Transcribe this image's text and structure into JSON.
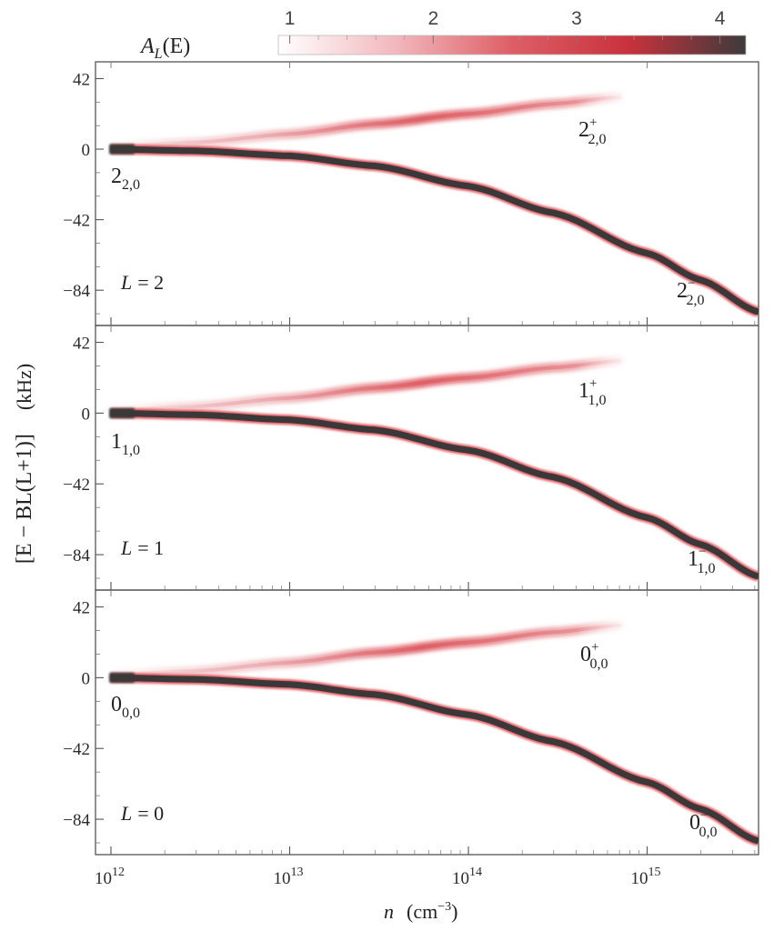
{
  "chart_data": {
    "type": "line",
    "x_scale": "log",
    "xlim": [
      1000000000000.0,
      4200000000000000.0
    ],
    "ylim": [
      -105,
      52
    ],
    "xlabel": {
      "var": "n",
      "unit": "(cm",
      "unit_exp": "−3",
      "unit_close": ")"
    },
    "ylabel": {
      "text": "[E − BL(L+1)]",
      "unit": "(kHz)"
    },
    "x_ticks": [
      {
        "value": 1000000000000.0,
        "base": "10",
        "exp": "12"
      },
      {
        "value": 10000000000000.0,
        "base": "10",
        "exp": "13"
      },
      {
        "value": 100000000000000.0,
        "base": "10",
        "exp": "14"
      },
      {
        "value": 1000000000000000.0,
        "base": "10",
        "exp": "15"
      }
    ],
    "y_ticks": [
      {
        "value": 42,
        "label": "42"
      },
      {
        "value": 0,
        "label": "0"
      },
      {
        "value": -42,
        "label": "−42"
      },
      {
        "value": -84,
        "label": "−84"
      }
    ],
    "colorbar": {
      "title": "A",
      "title_sub": "L",
      "title_tail": "(E)",
      "range": [
        0.92,
        4.18
      ],
      "ticks": [
        "1",
        "2",
        "3",
        "4"
      ],
      "colors": [
        "#ffffff",
        "#f2b8bd",
        "#dd5f66",
        "#c8323c",
        "#3d3a3b"
      ]
    },
    "panels": [
      {
        "L_text": "L = 2",
        "L_var": "L",
        "L_val": "= 2",
        "series": [
          {
            "base": "2",
            "sub": "2,0",
            "sup": "",
            "x": [
              1000000000000.0,
              3000000000000.0,
              10000000000000.0,
              30000000000000.0,
              100000000000000.0,
              300000000000000.0,
              1000000000000000.0,
              2000000000000000.0,
              4200000000000000.0
            ],
            "y": [
              0,
              -1,
              -4,
              -10,
              -22,
              -38,
              -62,
              -78,
              -97
            ]
          },
          {
            "base": "2",
            "sub": "2,0",
            "sup": "+",
            "x": [
              1000000000000.0,
              3000000000000.0,
              10000000000000.0,
              30000000000000.0,
              100000000000000.0,
              300000000000000.0,
              700000000000000.0
            ],
            "y": [
              2,
              4,
              9,
              15,
              21,
              27,
              31
            ]
          },
          {
            "base": "2",
            "sub": "2,0",
            "sup": "−"
          }
        ]
      },
      {
        "L_text": "L = 1",
        "L_var": "L",
        "L_val": "= 1",
        "series": [
          {
            "base": "1",
            "sub": "1,0",
            "sup": "",
            "x": [
              1000000000000.0,
              3000000000000.0,
              10000000000000.0,
              30000000000000.0,
              100000000000000.0,
              300000000000000.0,
              1000000000000000.0,
              2000000000000000.0,
              4200000000000000.0
            ],
            "y": [
              0,
              -1,
              -4,
              -10,
              -22,
              -38,
              -62,
              -78,
              -97
            ]
          },
          {
            "base": "1",
            "sub": "1,0",
            "sup": "+",
            "x": [
              1000000000000.0,
              3000000000000.0,
              10000000000000.0,
              30000000000000.0,
              100000000000000.0,
              300000000000000.0,
              700000000000000.0
            ],
            "y": [
              2,
              4,
              9,
              15,
              21,
              27,
              31
            ]
          },
          {
            "base": "1",
            "sub": "1,0",
            "sup": "−"
          }
        ]
      },
      {
        "L_text": "L = 0",
        "L_var": "L",
        "L_val": "= 0",
        "series": [
          {
            "base": "0",
            "sub": "0,0",
            "sup": "",
            "x": [
              1000000000000.0,
              3000000000000.0,
              10000000000000.0,
              30000000000000.0,
              100000000000000.0,
              300000000000000.0,
              1000000000000000.0,
              2000000000000000.0,
              4200000000000000.0
            ],
            "y": [
              0,
              -1,
              -4,
              -10,
              -22,
              -38,
              -62,
              -78,
              -97
            ]
          },
          {
            "base": "0",
            "sub": "0,0",
            "sup": "+",
            "x": [
              1000000000000.0,
              3000000000000.0,
              10000000000000.0,
              30000000000000.0,
              100000000000000.0,
              300000000000000.0,
              700000000000000.0
            ],
            "y": [
              2,
              4,
              9,
              15,
              21,
              27,
              31
            ]
          },
          {
            "base": "0",
            "sub": "0,0",
            "sup": "−"
          }
        ]
      }
    ]
  }
}
